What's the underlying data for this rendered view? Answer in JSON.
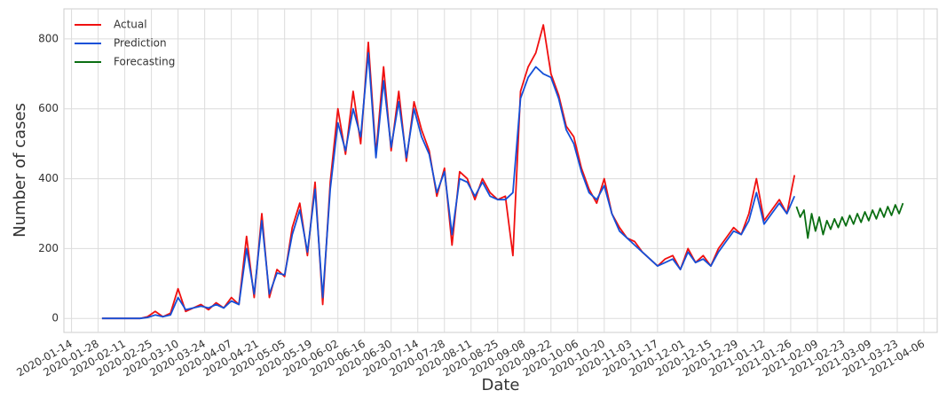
{
  "chart_data": {
    "type": "line",
    "x_label": "Date",
    "y_label": "Number of cases",
    "grid": true,
    "legend": "upper left",
    "xlim": [
      "2020-01-10",
      "2021-04-13"
    ],
    "ylim": [
      -40,
      886
    ],
    "yticks": [
      0,
      200,
      400,
      600,
      800
    ],
    "xticks": [
      "2020-01-14",
      "2020-01-28",
      "2020-02-11",
      "2020-02-25",
      "2020-03-10",
      "2020-03-24",
      "2020-04-07",
      "2020-04-21",
      "2020-05-05",
      "2020-05-19",
      "2020-06-02",
      "2020-06-16",
      "2020-06-30",
      "2020-07-14",
      "2020-07-28",
      "2020-08-11",
      "2020-08-25",
      "2020-09-08",
      "2020-09-22",
      "2020-10-06",
      "2020-10-20",
      "2020-11-03",
      "2020-11-17",
      "2020-12-01",
      "2020-12-15",
      "2020-12-29",
      "2021-01-12",
      "2021-01-26",
      "2021-02-09",
      "2021-02-23",
      "2021-03-09",
      "2021-03-23",
      "2021-04-06"
    ],
    "x": [
      "2020-01-30",
      "2020-02-03",
      "2020-02-07",
      "2020-02-11",
      "2020-02-15",
      "2020-02-19",
      "2020-02-23",
      "2020-02-27",
      "2020-03-02",
      "2020-03-06",
      "2020-03-10",
      "2020-03-14",
      "2020-03-18",
      "2020-03-22",
      "2020-03-26",
      "2020-03-30",
      "2020-04-03",
      "2020-04-07",
      "2020-04-11",
      "2020-04-15",
      "2020-04-19",
      "2020-04-23",
      "2020-04-27",
      "2020-05-01",
      "2020-05-05",
      "2020-05-09",
      "2020-05-13",
      "2020-05-17",
      "2020-05-21",
      "2020-05-25",
      "2020-05-29",
      "2020-06-02",
      "2020-06-06",
      "2020-06-10",
      "2020-06-14",
      "2020-06-18",
      "2020-06-22",
      "2020-06-26",
      "2020-06-30",
      "2020-07-04",
      "2020-07-08",
      "2020-07-12",
      "2020-07-16",
      "2020-07-20",
      "2020-07-24",
      "2020-07-28",
      "2020-08-01",
      "2020-08-05",
      "2020-08-09",
      "2020-08-13",
      "2020-08-17",
      "2020-08-21",
      "2020-08-25",
      "2020-08-29",
      "2020-09-02",
      "2020-09-06",
      "2020-09-10",
      "2020-09-14",
      "2020-09-18",
      "2020-09-22",
      "2020-09-26",
      "2020-09-30",
      "2020-10-04",
      "2020-10-08",
      "2020-10-12",
      "2020-10-16",
      "2020-10-20",
      "2020-10-24",
      "2020-10-28",
      "2020-11-01",
      "2020-11-05",
      "2020-11-09",
      "2020-11-13",
      "2020-11-17",
      "2020-11-21",
      "2020-11-25",
      "2020-11-29",
      "2020-12-03",
      "2020-12-07",
      "2020-12-11",
      "2020-12-15",
      "2020-12-19",
      "2020-12-23",
      "2020-12-27",
      "2020-12-31",
      "2021-01-04",
      "2021-01-08",
      "2021-01-12",
      "2021-01-16",
      "2021-01-20",
      "2021-01-24",
      "2021-01-28"
    ],
    "series": [
      {
        "name": "Actual",
        "color": "#f01010",
        "values": [
          0,
          0,
          0,
          0,
          0,
          0,
          5,
          20,
          5,
          15,
          85,
          20,
          30,
          40,
          25,
          45,
          30,
          60,
          40,
          235,
          60,
          300,
          60,
          140,
          120,
          260,
          330,
          180,
          390,
          40,
          390,
          600,
          470,
          650,
          500,
          790,
          470,
          720,
          480,
          650,
          450,
          620,
          540,
          480,
          350,
          430,
          210,
          420,
          400,
          340,
          400,
          360,
          340,
          350,
          180,
          650,
          720,
          760,
          840,
          700,
          640,
          550,
          520,
          430,
          370,
          330,
          400,
          300,
          260,
          230,
          220,
          190,
          170,
          150,
          170,
          180,
          140,
          200,
          160,
          180,
          150,
          200,
          230,
          260,
          240,
          300,
          400,
          280,
          310,
          340,
          300,
          410
        ]
      },
      {
        "name": "Prediction",
        "color": "#1450d8",
        "values": [
          0,
          0,
          0,
          0,
          0,
          0,
          3,
          10,
          5,
          10,
          60,
          25,
          30,
          35,
          30,
          40,
          30,
          50,
          40,
          200,
          70,
          280,
          70,
          130,
          125,
          240,
          310,
          190,
          370,
          60,
          370,
          560,
          480,
          600,
          520,
          760,
          460,
          680,
          490,
          620,
          460,
          600,
          520,
          470,
          360,
          420,
          240,
          400,
          390,
          350,
          390,
          350,
          340,
          340,
          360,
          630,
          690,
          720,
          700,
          690,
          630,
          540,
          500,
          420,
          360,
          340,
          380,
          300,
          250,
          230,
          210,
          190,
          170,
          150,
          160,
          170,
          140,
          190,
          160,
          170,
          150,
          190,
          220,
          250,
          240,
          280,
          360,
          270,
          300,
          330,
          300,
          350
        ]
      },
      {
        "name": "Forecasting",
        "color": "#0a6e12",
        "x": [
          "2021-01-29",
          "2021-01-31",
          "2021-02-02",
          "2021-02-04",
          "2021-02-06",
          "2021-02-08",
          "2021-02-10",
          "2021-02-12",
          "2021-02-14",
          "2021-02-16",
          "2021-02-18",
          "2021-02-20",
          "2021-02-22",
          "2021-02-24",
          "2021-02-26",
          "2021-02-28",
          "2021-03-02",
          "2021-03-04",
          "2021-03-06",
          "2021-03-08",
          "2021-03-10",
          "2021-03-12",
          "2021-03-14",
          "2021-03-16",
          "2021-03-18",
          "2021-03-20",
          "2021-03-22",
          "2021-03-24",
          "2021-03-26"
        ],
        "values": [
          320,
          290,
          310,
          230,
          300,
          250,
          290,
          240,
          280,
          255,
          285,
          260,
          290,
          265,
          295,
          270,
          300,
          275,
          305,
          280,
          310,
          285,
          315,
          290,
          320,
          295,
          325,
          300,
          330
        ]
      }
    ]
  }
}
